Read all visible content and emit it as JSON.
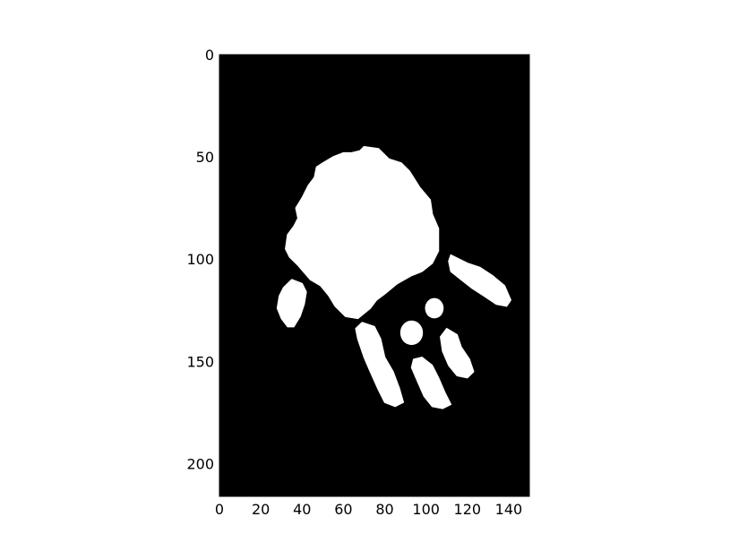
{
  "chart_data": {
    "type": "image",
    "title": "",
    "xlabel": "",
    "ylabel": "",
    "xlim": [
      0,
      150
    ],
    "ylim": [
      216,
      0
    ],
    "y_inverted": true,
    "colormap": "gray",
    "background_color": "#000000",
    "foreground_color": "#ffffff",
    "x_ticks": [
      0,
      20,
      40,
      60,
      80,
      100,
      120,
      140
    ],
    "y_ticks": [
      0,
      50,
      100,
      150,
      200
    ],
    "x_tick_labels": [
      "0",
      "20",
      "40",
      "60",
      "80",
      "100",
      "120",
      "140"
    ],
    "y_tick_labels": [
      "0",
      "50",
      "100",
      "150",
      "200"
    ],
    "grid": false,
    "legend": false,
    "content_shapes": [
      {
        "name": "palm",
        "polygon": [
          [
            70,
            45
          ],
          [
            77,
            46
          ],
          [
            82,
            51
          ],
          [
            88,
            53
          ],
          [
            92,
            57
          ],
          [
            97,
            65
          ],
          [
            102,
            71
          ],
          [
            103,
            78
          ],
          [
            106,
            85
          ],
          [
            106,
            96
          ],
          [
            103,
            102
          ],
          [
            98,
            106
          ],
          [
            93,
            108
          ],
          [
            86,
            112
          ],
          [
            80,
            117
          ],
          [
            76,
            120
          ],
          [
            73,
            124
          ],
          [
            67,
            129
          ],
          [
            61,
            128
          ],
          [
            56,
            123
          ],
          [
            53,
            118
          ],
          [
            49,
            113
          ],
          [
            44,
            110
          ],
          [
            38,
            103
          ],
          [
            34,
            99
          ],
          [
            32,
            95
          ],
          [
            33,
            88
          ],
          [
            36,
            84
          ],
          [
            38,
            80
          ],
          [
            37,
            75
          ],
          [
            40,
            70
          ],
          [
            43,
            64
          ],
          [
            46,
            60
          ],
          [
            47,
            55
          ],
          [
            50,
            53
          ],
          [
            55,
            50
          ],
          [
            60,
            48
          ],
          [
            64,
            48
          ],
          [
            68,
            47
          ]
        ]
      },
      {
        "name": "thumb",
        "polygon": [
          [
            35,
            110
          ],
          [
            40,
            112
          ],
          [
            42,
            116
          ],
          [
            41,
            122
          ],
          [
            39,
            128
          ],
          [
            36,
            133
          ],
          [
            33,
            133
          ],
          [
            30,
            129
          ],
          [
            28,
            124
          ],
          [
            29,
            118
          ],
          [
            31,
            114
          ]
        ]
      },
      {
        "name": "finger-1",
        "polygon": [
          [
            69,
            131
          ],
          [
            75,
            133
          ],
          [
            78,
            139
          ],
          [
            80,
            148
          ],
          [
            84,
            155
          ],
          [
            87,
            163
          ],
          [
            89,
            170
          ],
          [
            85,
            172
          ],
          [
            80,
            170
          ],
          [
            77,
            164
          ],
          [
            73,
            155
          ],
          [
            70,
            148
          ],
          [
            67,
            139
          ],
          [
            66,
            134
          ]
        ]
      },
      {
        "name": "finger-2",
        "polygon": [
          [
            98,
            148
          ],
          [
            103,
            152
          ],
          [
            106,
            158
          ],
          [
            109,
            165
          ],
          [
            112,
            171
          ],
          [
            108,
            173
          ],
          [
            103,
            172
          ],
          [
            99,
            167
          ],
          [
            96,
            160
          ],
          [
            93,
            153
          ],
          [
            94,
            149
          ]
        ]
      },
      {
        "name": "finger-3",
        "polygon": [
          [
            110,
            134
          ],
          [
            115,
            137
          ],
          [
            117,
            143
          ],
          [
            121,
            149
          ],
          [
            123,
            155
          ],
          [
            120,
            158
          ],
          [
            115,
            157
          ],
          [
            111,
            152
          ],
          [
            108,
            145
          ],
          [
            107,
            138
          ]
        ]
      },
      {
        "name": "finger-4",
        "polygon": [
          [
            112,
            98
          ],
          [
            120,
            102
          ],
          [
            126,
            104
          ],
          [
            132,
            108
          ],
          [
            138,
            113
          ],
          [
            141,
            120
          ],
          [
            139,
            123
          ],
          [
            134,
            122
          ],
          [
            128,
            118
          ],
          [
            122,
            114
          ],
          [
            117,
            110
          ],
          [
            112,
            106
          ],
          [
            111,
            101
          ]
        ]
      },
      {
        "name": "dot-left",
        "ellipse": [
          93,
          136,
          5.5,
          6
        ]
      },
      {
        "name": "dot-right",
        "ellipse": [
          104,
          124,
          4.5,
          5
        ]
      }
    ]
  }
}
